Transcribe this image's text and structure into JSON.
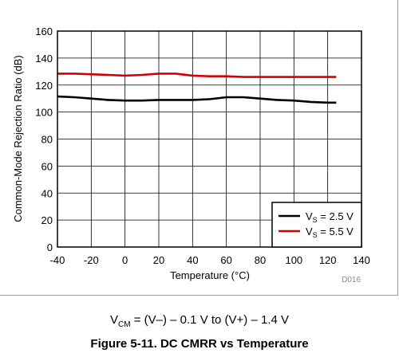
{
  "chart_data": {
    "type": "line",
    "xlabel": "Temperature (°C)",
    "ylabel": "Common-Mode Rejection Ratio (dB)",
    "xlim": [
      -40,
      140
    ],
    "ylim": [
      0,
      160
    ],
    "x_ticks": [
      -40,
      -20,
      0,
      20,
      40,
      60,
      80,
      100,
      120,
      140
    ],
    "y_ticks": [
      0,
      20,
      40,
      60,
      80,
      100,
      120,
      140,
      160
    ],
    "grid": true,
    "legend_position": "bottom-right",
    "series": [
      {
        "name": "VS = 2.5 V",
        "name_main": "V",
        "name_sub": "S",
        "name_rest": " = 2.5 V",
        "color": "#000000",
        "x": [
          -40,
          -30,
          -20,
          -10,
          0,
          10,
          20,
          30,
          40,
          50,
          60,
          70,
          80,
          90,
          100,
          110,
          120,
          125
        ],
        "y": [
          111.5,
          111,
          110,
          109,
          108.5,
          108.5,
          109,
          109,
          109,
          109.5,
          111,
          111,
          110,
          109,
          108.5,
          107.5,
          107,
          107
        ]
      },
      {
        "name": "VS = 5.5 V",
        "name_main": "V",
        "name_sub": "S",
        "name_rest": " = 5.5 V",
        "color": "#d40000",
        "x": [
          -40,
          -30,
          -20,
          -10,
          0,
          10,
          20,
          30,
          40,
          50,
          60,
          70,
          80,
          90,
          100,
          110,
          120,
          125
        ],
        "y": [
          128.5,
          128.5,
          128,
          127.5,
          127,
          127.5,
          128.5,
          128.5,
          127,
          126.5,
          126.5,
          126,
          126,
          126,
          126,
          126,
          126,
          126
        ]
      }
    ],
    "code_label": "D016"
  },
  "condition": {
    "main": "V",
    "sub": "CM",
    "rest": " = (V–) – 0.1 V to (V+) – 1.4 V"
  },
  "caption": "Figure 5-11. DC CMRR vs Temperature"
}
